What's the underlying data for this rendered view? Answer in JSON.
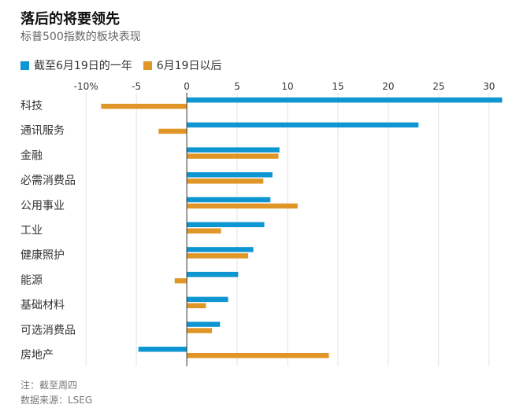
{
  "header": {
    "title": "落后的将要领先",
    "subtitle": "标普500指数的板块表现"
  },
  "notes": {
    "note": "注：截至周四",
    "source": "数据来源：LSEG"
  },
  "colors": {
    "series1": "#0D96D1",
    "series2": "#E09626",
    "grid": "#E3E3E3",
    "axis": "#333333",
    "text": "#333333"
  },
  "chart_data": {
    "type": "bar",
    "orientation": "horizontal",
    "title": "落后的将要领先",
    "subtitle": "标普500指数的板块表现",
    "xlabel": "",
    "ylabel": "",
    "xlim": [
      -11.5,
      31.5
    ],
    "grid": true,
    "legend_position": "top-left",
    "x_ticks": [
      -10,
      -5,
      0,
      5,
      10,
      15,
      20,
      25,
      30
    ],
    "x_tick_labels": [
      "-10%",
      "-5",
      "0",
      "5",
      "10",
      "15",
      "20",
      "25",
      "30"
    ],
    "categories": [
      "科技",
      "通讯服务",
      "金融",
      "必需消费品",
      "公用事业",
      "工业",
      "健康照护",
      "能源",
      "基础材料",
      "可选消费品",
      "房地产"
    ],
    "series": [
      {
        "name": "截至6月19日的一年",
        "color": "#0D96D1",
        "values": [
          31.3,
          23.0,
          9.2,
          8.5,
          8.3,
          7.7,
          6.6,
          5.1,
          4.1,
          3.3,
          -4.8
        ]
      },
      {
        "name": "6月19日以后",
        "color": "#E09626",
        "values": [
          -8.5,
          -2.8,
          9.1,
          7.6,
          11.0,
          3.4,
          6.1,
          -1.2,
          1.9,
          2.5,
          14.1
        ]
      }
    ]
  }
}
